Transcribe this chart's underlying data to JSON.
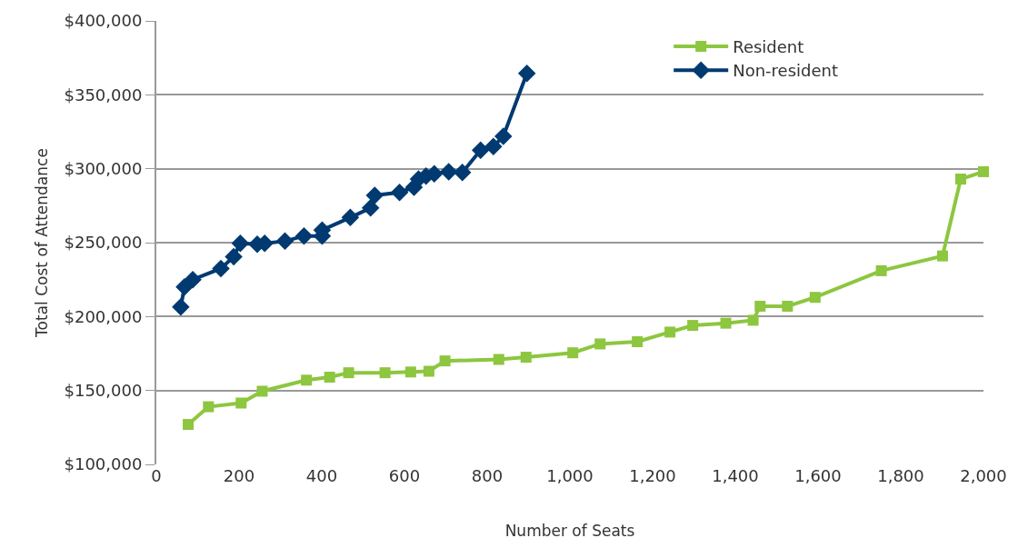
{
  "chart_data": {
    "type": "line",
    "xlabel": "Number of Seats",
    "ylabel": "Total Cost of Attendance",
    "xlim": [
      0,
      2000
    ],
    "xticks": [
      0,
      200,
      400,
      600,
      800,
      {
        "value": 1000,
        "label": "1,000"
      },
      {
        "value": 1200,
        "label": "1,200"
      },
      {
        "value": 1400,
        "label": "1,400"
      },
      {
        "value": 1600,
        "label": "1,600"
      },
      {
        "value": 1800,
        "label": "1,800"
      },
      {
        "value": 2000,
        "label": "2,000"
      }
    ],
    "ylim": [
      100000,
      400000
    ],
    "yticks": [
      {
        "value": 100000,
        "label": "$100,000"
      },
      {
        "value": 150000,
        "label": "$150,000"
      },
      {
        "value": 200000,
        "label": "$200,000"
      },
      {
        "value": 250000,
        "label": "$250,000"
      },
      {
        "value": 300000,
        "label": "$300,000"
      },
      {
        "value": 350000,
        "label": "$350,000"
      },
      {
        "value": 400000,
        "label": "$400,000"
      }
    ],
    "grid": "y",
    "legend": "top right",
    "line_style": "solid",
    "series": [
      {
        "name": "Resident",
        "color": "#8dc63f",
        "marker": "square",
        "x": [
          77,
          126,
          205,
          256,
          363,
          419,
          465,
          553,
          615,
          659,
          698,
          828,
          894,
          1007,
          1073,
          1163,
          1242,
          1297,
          1377,
          1443,
          1460,
          1526,
          1593,
          1753,
          1901,
          1945,
          2000
        ],
        "values": [
          127000,
          139000,
          141500,
          149500,
          157000,
          159000,
          162000,
          162000,
          162500,
          163000,
          170000,
          171000,
          172500,
          175500,
          181500,
          183000,
          189500,
          194000,
          195500,
          197500,
          207000,
          207000,
          213000,
          231000,
          241000,
          293000,
          298000
        ]
      },
      {
        "name": "Non-resident",
        "color": "#003a70",
        "marker": "diamond",
        "x": [
          59,
          68,
          88,
          156,
          187,
          203,
          244,
          262,
          311,
          357,
          401,
          401,
          469,
          513,
          518,
          528,
          588,
          623,
          634,
          652,
          672,
          707,
          740,
          784,
          815,
          839,
          896
        ],
        "values": [
          206500,
          220000,
          225000,
          232500,
          240500,
          249500,
          249000,
          249500,
          251000,
          254500,
          254500,
          258500,
          267000,
          null,
          273500,
          282000,
          284000,
          287500,
          293000,
          295000,
          296500,
          298000,
          297500,
          312500,
          315000,
          322000,
          364500
        ]
      }
    ]
  }
}
